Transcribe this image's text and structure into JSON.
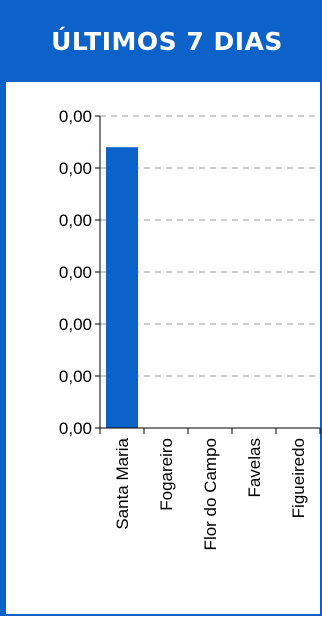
{
  "header": {
    "title": "ÚLTIMOS 7 DIAS"
  },
  "colors": {
    "accent": "#0d62c9",
    "bar": "#0d62c9"
  },
  "chart_data": {
    "type": "bar",
    "categories": [
      "Santa Maria",
      "Fogareiro",
      "Flor do Campo",
      "Favelas",
      "Figueiredo"
    ],
    "values": [
      0.0054,
      0,
      0,
      0,
      0
    ],
    "ylim": [
      0,
      0.006
    ],
    "yticks": [
      "0,00",
      "0,00",
      "0,00",
      "0,00",
      "0,00",
      "0,00",
      "0,00"
    ],
    "grid": true,
    "legend": "none"
  }
}
